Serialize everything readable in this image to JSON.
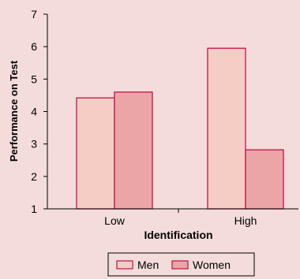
{
  "chart_data": {
    "type": "bar",
    "categories": [
      "Low",
      "High"
    ],
    "series": [
      {
        "name": "Men",
        "values": [
          4.42,
          5.95
        ]
      },
      {
        "name": "Women",
        "values": [
          4.6,
          2.82
        ]
      }
    ],
    "xlabel": "Identification",
    "ylabel": "Performance on Test",
    "ylim": [
      1,
      7
    ],
    "yticks": [
      "1",
      "2",
      "3",
      "4",
      "5",
      "6",
      "7"
    ],
    "grid": false,
    "legend_position": "bottom-center",
    "colors": {
      "background": "#f3dcd9",
      "men_fill": "#f6cdc5",
      "women_fill": "#eba5a6",
      "bar_stroke": "#c0124a",
      "axis": "#000000"
    }
  }
}
